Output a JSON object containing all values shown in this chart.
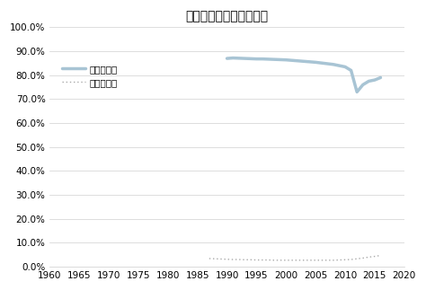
{
  "title": "再生可能エネルギー比率",
  "legend_niger": "ニジェール",
  "legend_japan": "参考）日本",
  "xlim": [
    1960,
    2020
  ],
  "ylim": [
    0.0,
    1.0
  ],
  "yticks": [
    0.0,
    0.1,
    0.2,
    0.3,
    0.4,
    0.5,
    0.6,
    0.7,
    0.8,
    0.9,
    1.0
  ],
  "xticks": [
    1960,
    1965,
    1970,
    1975,
    1980,
    1985,
    1990,
    1995,
    2000,
    2005,
    2010,
    2015,
    2020
  ],
  "niger_data": {
    "years": [
      1990,
      1991,
      1992,
      1993,
      1994,
      1995,
      1996,
      1997,
      1998,
      1999,
      2000,
      2001,
      2002,
      2003,
      2004,
      2005,
      2006,
      2007,
      2008,
      2009,
      2010,
      2011,
      2012,
      2013,
      2014,
      2015,
      2016
    ],
    "values": [
      0.87,
      0.872,
      0.871,
      0.87,
      0.869,
      0.868,
      0.868,
      0.867,
      0.866,
      0.865,
      0.864,
      0.862,
      0.86,
      0.858,
      0.856,
      0.854,
      0.851,
      0.848,
      0.845,
      0.84,
      0.835,
      0.82,
      0.73,
      0.76,
      0.775,
      0.78,
      0.79
    ]
  },
  "japan_data": {
    "years": [
      1987,
      1988,
      1989,
      1990,
      1991,
      1992,
      1993,
      1994,
      1995,
      1996,
      1997,
      1998,
      1999,
      2000,
      2001,
      2002,
      2003,
      2004,
      2005,
      2006,
      2007,
      2008,
      2009,
      2010,
      2011,
      2012,
      2013,
      2014,
      2015,
      2016
    ],
    "values": [
      0.034,
      0.033,
      0.032,
      0.031,
      0.03,
      0.03,
      0.029,
      0.029,
      0.028,
      0.028,
      0.028,
      0.027,
      0.027,
      0.027,
      0.027,
      0.027,
      0.027,
      0.027,
      0.027,
      0.027,
      0.027,
      0.027,
      0.028,
      0.029,
      0.03,
      0.033,
      0.036,
      0.04,
      0.043,
      0.047
    ]
  },
  "niger_color": "#a8c4d4",
  "niger_linewidth": 2.5,
  "japan_color": "#aaaaaa",
  "japan_linewidth": 1.0,
  "background_color": "#ffffff",
  "grid_color": "#d0d0d0",
  "title_fontsize": 10,
  "legend_fontsize": 7.5,
  "tick_fontsize": 7.5
}
